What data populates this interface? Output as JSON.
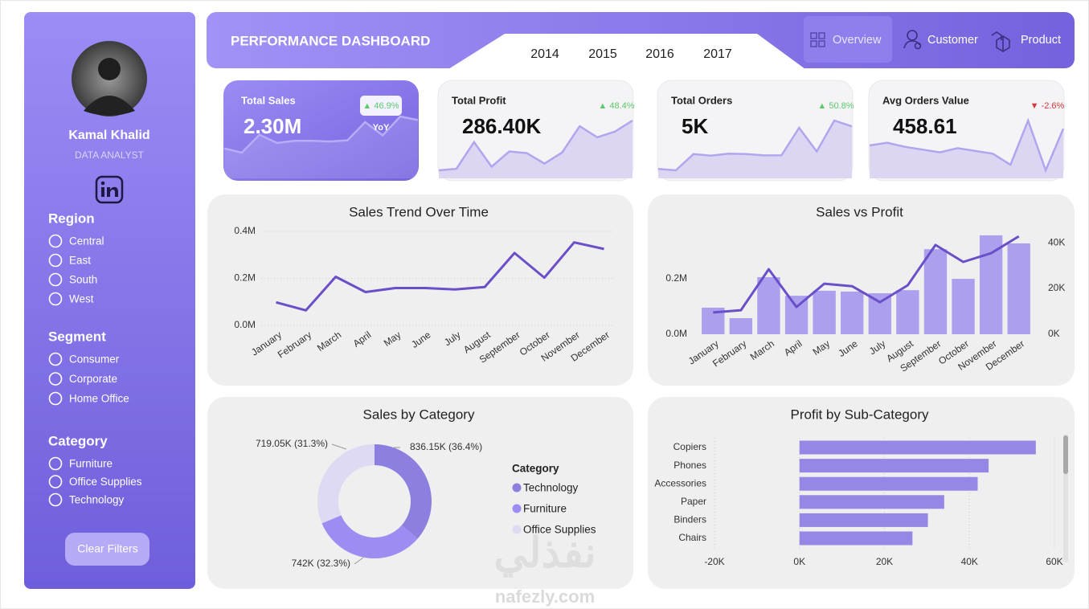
{
  "sidebar": {
    "name": "Kamal Khalid",
    "role": "DATA ANALYST",
    "filters": [
      {
        "title": "Region",
        "options": [
          "Central",
          "East",
          "South",
          "West"
        ]
      },
      {
        "title": "Segment",
        "options": [
          "Consumer",
          "Corporate",
          "Home Office"
        ]
      },
      {
        "title": "Category",
        "options": [
          "Furniture",
          "Office Supplies",
          "Technology"
        ]
      }
    ],
    "button": "Clear Filters"
  },
  "header": {
    "title": "PERFORMANCE DASHBOARD",
    "years": [
      "2014",
      "2015",
      "2016",
      "2017"
    ],
    "nav": [
      "Overview",
      "Customer",
      "Product"
    ]
  },
  "kpis": [
    {
      "label": "Total Sales",
      "value": "2.30M",
      "change": "▲ 46.9%",
      "note": "YoY"
    },
    {
      "label": "Total Profit",
      "value": "286.40K",
      "change": "▲ 48.4%"
    },
    {
      "label": "Total Orders",
      "value": "5K",
      "change": "▲ 50.8%",
      "trend": [
        178,
        160,
        362,
        343,
        367,
        363,
        346,
        347,
        689,
        395,
        780,
        707
      ]
    },
    {
      "label": "Avg Orders Value",
      "value": "458.61",
      "change": "▼ -2.6%",
      "trend": [
        470,
        480,
        465,
        455,
        445,
        460,
        450,
        440,
        400,
        560,
        380,
        530
      ]
    }
  ],
  "chart_data": [
    {
      "type": "line",
      "title": "Sales Trend Over Time",
      "categories": [
        "January",
        "February",
        "March",
        "April",
        "May",
        "June",
        "July",
        "August",
        "September",
        "October",
        "November",
        "December"
      ],
      "series": [
        {
          "color": "#6a4fc9",
          "values": [
            98000,
            64000,
            207000,
            142000,
            159000,
            159000,
            153000,
            163000,
            308000,
            203000,
            353000,
            325000
          ]
        }
      ],
      "ylim": [
        0,
        400000
      ],
      "yticks": [
        {
          "value": 0,
          "label": "0.0M"
        },
        {
          "value": 200000,
          "label": "0.2M"
        },
        {
          "value": 400000,
          "label": "0.4M"
        }
      ],
      "grid": true
    },
    {
      "type": "combo",
      "title": "Sales vs Profit",
      "categories": [
        "January",
        "February",
        "March",
        "April",
        "May",
        "June",
        "July",
        "August",
        "September",
        "October",
        "November",
        "December"
      ],
      "series": [
        {
          "type": "bar",
          "color": "#ab9fee",
          "values": [
            96000,
            58000,
            206000,
            139000,
            157000,
            154000,
            148000,
            159000,
            307000,
            200000,
            357000,
            328000
          ]
        },
        {
          "type": "line",
          "axis": "y2",
          "color": "#6a4fc9",
          "values": [
            9500,
            10500,
            28400,
            11900,
            22100,
            21000,
            14000,
            21400,
            39000,
            31600,
            35400,
            42800
          ]
        }
      ],
      "ylim": [
        0,
        380000
      ],
      "yticks": [
        {
          "value": 0,
          "label": "0.0M"
        },
        {
          "value": 200000,
          "label": "0.2M"
        }
      ],
      "y2lim": [
        0,
        46000
      ],
      "y2ticks": [
        {
          "value": 0,
          "label": "0K"
        },
        {
          "value": 20000,
          "label": "20K"
        },
        {
          "value": 40000,
          "label": "40K"
        }
      ]
    },
    {
      "type": "pie",
      "title": "Sales by Category",
      "legend_title": "Category",
      "categories": [
        "Technology",
        "Furniture",
        "Office Supplies"
      ],
      "values": [
        836150,
        742000,
        719050
      ],
      "value_labels": [
        "836.15K (36.4%)",
        "742K (32.3%)",
        "719.05K (31.3%)"
      ],
      "colors": [
        "#8b7fe0",
        "#9d8cf2",
        "#dedaf3"
      ]
    },
    {
      "type": "hbar",
      "title": "Profit by Sub-Category",
      "categories": [
        "Copiers",
        "Phones",
        "Accessories",
        "Paper",
        "Binders",
        "Chairs"
      ],
      "values": [
        55617,
        44516,
        41937,
        34054,
        30222,
        26590
      ],
      "color": "#9487e6",
      "xlim": [
        -20000,
        60000
      ],
      "xticks": [
        {
          "value": -20000,
          "label": "-20K"
        },
        {
          "value": 0,
          "label": "0K"
        },
        {
          "value": 20000,
          "label": "20K"
        },
        {
          "value": 40000,
          "label": "40K"
        },
        {
          "value": 60000,
          "label": "60K"
        }
      ],
      "grid": true
    }
  ],
  "watermark": [
    "نفذلي",
    "nafezly.com"
  ]
}
